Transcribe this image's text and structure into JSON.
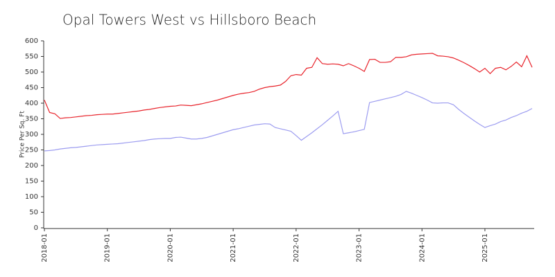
{
  "chart_data": {
    "type": "line",
    "title": "Opal Towers West vs Hillsboro Beach",
    "y_label": "Price Per Sq. Ft",
    "x": [
      "2018-01",
      "2018-02",
      "2018-03",
      "2018-04",
      "2018-05",
      "2018-06",
      "2018-07",
      "2018-08",
      "2018-09",
      "2018-10",
      "2018-11",
      "2018-12",
      "2019-01",
      "2019-02",
      "2019-03",
      "2019-04",
      "2019-05",
      "2019-06",
      "2019-07",
      "2019-08",
      "2019-09",
      "2019-10",
      "2019-11",
      "2019-12",
      "2020-01",
      "2020-02",
      "2020-03",
      "2020-04",
      "2020-05",
      "2020-06",
      "2020-07",
      "2020-08",
      "2020-09",
      "2020-10",
      "2020-11",
      "2020-12",
      "2021-01",
      "2021-02",
      "2021-03",
      "2021-04",
      "2021-05",
      "2021-06",
      "2021-07",
      "2021-08",
      "2021-09",
      "2021-10",
      "2021-11",
      "2021-12",
      "2022-01",
      "2022-02",
      "2022-03",
      "2022-04",
      "2022-05",
      "2022-06",
      "2022-07",
      "2022-08",
      "2022-09",
      "2022-10",
      "2022-11",
      "2022-12",
      "2023-01",
      "2023-02",
      "2023-03",
      "2023-04",
      "2023-05",
      "2023-06",
      "2023-07",
      "2023-08",
      "2023-09",
      "2023-10",
      "2023-11",
      "2023-12",
      "2024-01",
      "2024-02",
      "2024-03",
      "2024-04",
      "2024-05",
      "2024-06",
      "2024-07",
      "2024-08",
      "2024-09",
      "2024-10",
      "2024-11",
      "2024-12",
      "2025-01",
      "2025-02",
      "2025-03",
      "2025-04",
      "2025-05",
      "2025-06",
      "2025-07",
      "2025-08",
      "2025-09",
      "2025-10"
    ],
    "series": [
      {
        "color": "#e8232b",
        "values": [
          410,
          370,
          366,
          351,
          353,
          354,
          356,
          358,
          360,
          361,
          363,
          364,
          365,
          365,
          367,
          369,
          371,
          373,
          375,
          378,
          380,
          383,
          386,
          388,
          390,
          391,
          394,
          393,
          392,
          395,
          398,
          402,
          406,
          410,
          415,
          420,
          425,
          429,
          432,
          434,
          438,
          445,
          450,
          453,
          455,
          458,
          470,
          488,
          492,
          490,
          512,
          515,
          546,
          527,
          525,
          526,
          525,
          520,
          527,
          520,
          512,
          502,
          540,
          541,
          531,
          531,
          533,
          547,
          547,
          549,
          555,
          557,
          558,
          559,
          560,
          552,
          551,
          549,
          545,
          538,
          530,
          521,
          511,
          500,
          512,
          495,
          512,
          515,
          507,
          518,
          532,
          517,
          552,
          515
        ]
      },
      {
        "color": "#9c9cf0",
        "values": [
          247,
          248,
          250,
          253,
          255,
          257,
          258,
          260,
          262,
          264,
          266,
          267,
          268,
          269,
          270,
          272,
          274,
          276,
          278,
          280,
          283,
          285,
          286,
          287,
          287,
          290,
          291,
          288,
          285,
          285,
          287,
          290,
          295,
          300,
          305,
          310,
          315,
          318,
          322,
          326,
          330,
          332,
          334,
          333,
          322,
          318,
          314,
          310,
          296,
          281,
          293,
          305,
          318,
          331,
          345,
          359,
          374,
          302,
          305,
          308,
          312,
          316,
          402,
          406,
          410,
          414,
          418,
          422,
          428,
          438,
          432,
          425,
          418,
          410,
          401,
          400,
          401,
          401,
          395,
          380,
          367,
          355,
          343,
          332,
          322,
          328,
          333,
          341,
          346,
          354,
          360,
          368,
          374,
          383
        ]
      }
    ],
    "xlim": [
      "2018-01",
      "2025-10"
    ],
    "xticks": [
      "2018-01",
      "2019-01",
      "2020-01",
      "2021-01",
      "2022-01",
      "2023-01",
      "2024-01",
      "2025-01"
    ],
    "ylim": [
      0,
      600
    ],
    "yticks": [
      0,
      50,
      100,
      150,
      200,
      250,
      300,
      350,
      400,
      450,
      500,
      550,
      600
    ],
    "grid": false
  }
}
